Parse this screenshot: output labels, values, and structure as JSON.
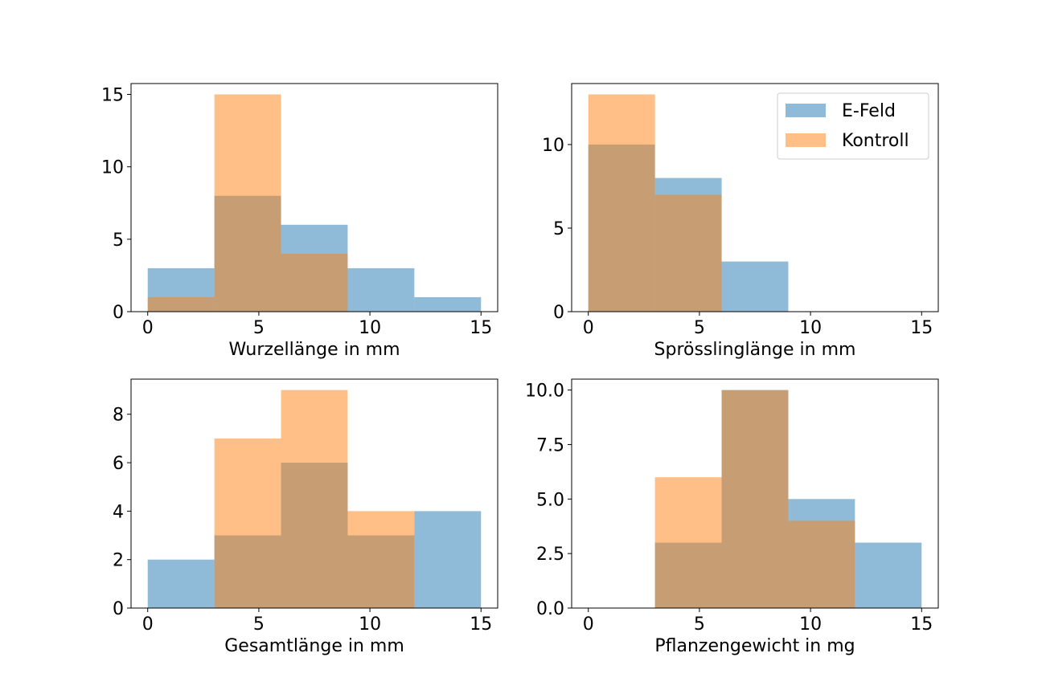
{
  "legend": {
    "entries": [
      {
        "name": "E-Feld",
        "color": "#1f77b4"
      },
      {
        "name": "Kontroll",
        "color": "#ff7f0e"
      }
    ],
    "placement": "upper right",
    "subplot": 1
  },
  "chart_data": [
    {
      "type": "bar",
      "xlabel": "Wurzellänge in mm",
      "xlim": [
        -0.75,
        15.75
      ],
      "ylim": [
        0,
        15.75
      ],
      "xticks": [
        0,
        5,
        10,
        15
      ],
      "yticks": [
        0,
        5,
        10,
        15
      ],
      "ytick_labels": [
        "0",
        "5",
        "10",
        "15"
      ],
      "bin_edges": [
        0,
        3,
        6,
        9,
        12,
        15
      ],
      "series": [
        {
          "name": "E-Feld",
          "values": [
            3,
            8,
            6,
            3,
            1
          ]
        },
        {
          "name": "Kontroll",
          "values": [
            1,
            15,
            4,
            0,
            0
          ]
        }
      ]
    },
    {
      "type": "bar",
      "xlabel": "Sprösslinglänge in mm",
      "xlim": [
        -0.75,
        15.75
      ],
      "ylim": [
        0,
        13.65
      ],
      "xticks": [
        0,
        5,
        10,
        15
      ],
      "yticks": [
        0,
        5,
        10
      ],
      "ytick_labels": [
        "0",
        "5",
        "10"
      ],
      "bin_edges": [
        0,
        3,
        6,
        9,
        12,
        15
      ],
      "series": [
        {
          "name": "E-Feld",
          "values": [
            10,
            8,
            3,
            0,
            0
          ]
        },
        {
          "name": "Kontroll",
          "values": [
            13,
            7,
            0,
            0,
            0
          ]
        }
      ]
    },
    {
      "type": "bar",
      "xlabel": "Gesamtlänge in mm",
      "xlim": [
        -0.75,
        15.75
      ],
      "ylim": [
        0,
        9.45
      ],
      "xticks": [
        0,
        5,
        10,
        15
      ],
      "yticks": [
        0,
        2,
        4,
        6,
        8
      ],
      "ytick_labels": [
        "0",
        "2",
        "4",
        "6",
        "8"
      ],
      "bin_edges": [
        0,
        3,
        6,
        9,
        12,
        15
      ],
      "series": [
        {
          "name": "E-Feld",
          "values": [
            2,
            3,
            6,
            3,
            4
          ]
        },
        {
          "name": "Kontroll",
          "values": [
            0,
            7,
            9,
            4,
            0
          ]
        }
      ]
    },
    {
      "type": "bar",
      "xlabel": "Pflanzengewicht in mg",
      "xlim": [
        -0.75,
        15.75
      ],
      "ylim": [
        0,
        10.5
      ],
      "xticks": [
        0,
        5,
        10,
        15
      ],
      "yticks": [
        0,
        2.5,
        5,
        7.5,
        10
      ],
      "ytick_labels": [
        "0.0",
        "2.5",
        "5.0",
        "7.5",
        "10.0"
      ],
      "bin_edges": [
        0,
        3,
        6,
        9,
        12,
        15
      ],
      "series": [
        {
          "name": "E-Feld",
          "values": [
            0,
            3,
            10,
            5,
            3
          ]
        },
        {
          "name": "Kontroll",
          "values": [
            0,
            6,
            10,
            4,
            0
          ]
        }
      ]
    }
  ]
}
